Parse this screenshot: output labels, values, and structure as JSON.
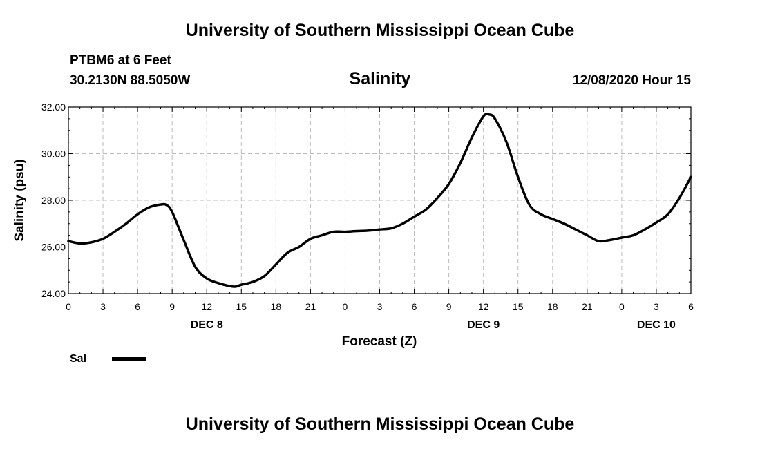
{
  "header": {
    "title": "University of Southern Mississippi Ocean Cube",
    "station": "PTBM6 at 6 Feet",
    "coordinates": "30.2130N 88.5050W",
    "timestamp": "12/08/2020 Hour 15"
  },
  "footer": {
    "title": "University of Southern Mississippi Ocean Cube"
  },
  "legend": {
    "label": "Sal"
  },
  "colors": {
    "line": "#000000",
    "grid": "#bbbbbb"
  },
  "chart_data": {
    "type": "line",
    "title": "Salinity",
    "xlabel": "Forecast (Z)",
    "ylabel": "Salinity (psu)",
    "xlim": [
      0,
      54
    ],
    "ylim": [
      24,
      32
    ],
    "yticks": [
      24,
      26,
      28,
      30,
      32
    ],
    "ytick_labels": [
      "24.00",
      "26.00",
      "28.00",
      "30.00",
      "32.00"
    ],
    "xticks": [
      0,
      3,
      6,
      9,
      12,
      15,
      18,
      21,
      24,
      27,
      30,
      33,
      36,
      39,
      42,
      45,
      48,
      51,
      54
    ],
    "xtick_labels": [
      "0",
      "3",
      "6",
      "9",
      "12",
      "15",
      "18",
      "21",
      "0",
      "3",
      "6",
      "9",
      "12",
      "15",
      "18",
      "21",
      "0",
      "3",
      "6"
    ],
    "day_labels": [
      {
        "x": 12,
        "label": "DEC 8"
      },
      {
        "x": 36,
        "label": "DEC 9"
      },
      {
        "x": 51,
        "label": "DEC 10"
      }
    ],
    "grid": true,
    "series": [
      {
        "name": "Sal",
        "x": [
          0,
          1,
          2,
          3,
          4,
          5,
          6,
          7,
          8,
          8.5,
          9,
          10,
          11,
          12,
          13,
          14,
          14.5,
          15,
          16,
          17,
          18,
          19,
          20,
          21,
          22,
          23,
          24,
          25,
          26,
          27,
          28,
          29,
          30,
          31,
          32,
          33,
          34,
          35,
          36,
          36.5,
          37,
          38,
          39,
          40,
          41,
          42,
          43,
          44,
          45,
          46,
          47,
          48,
          49,
          50,
          51,
          52,
          53,
          54
        ],
        "y": [
          26.25,
          26.15,
          26.2,
          26.35,
          26.65,
          27.0,
          27.4,
          27.7,
          27.82,
          27.8,
          27.5,
          26.3,
          25.15,
          24.65,
          24.45,
          24.32,
          24.3,
          24.38,
          24.5,
          24.75,
          25.25,
          25.75,
          26.0,
          26.35,
          26.5,
          26.65,
          26.65,
          26.68,
          26.7,
          26.75,
          26.8,
          27.0,
          27.3,
          27.6,
          28.1,
          28.7,
          29.6,
          30.7,
          31.6,
          31.68,
          31.5,
          30.5,
          29.0,
          27.8,
          27.4,
          27.2,
          27.0,
          26.75,
          26.5,
          26.25,
          26.3,
          26.4,
          26.5,
          26.75,
          27.05,
          27.4,
          28.1,
          29.0
        ]
      }
    ]
  }
}
